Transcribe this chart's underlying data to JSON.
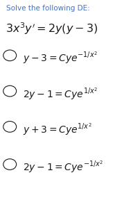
{
  "title": "Solve the following DE:",
  "equation_parts": {
    "text": "3x³y′ = 2y(y – 3)",
    "math": "$3x^3y^{\\prime} = 2y(y-3)$"
  },
  "options": [
    "$y-3 = Cye^{-1/x^2}$",
    "$2y-1 = Cye^{1/x^2}$",
    "$y+3 = Cye^{1/x^2}$",
    "$2y-1 = Cye^{-1/x^2}$"
  ],
  "title_color": "#4472C4",
  "text_color": "#1a1a1a",
  "bg_color": "#FFFFFF",
  "title_fontsize": 7.5,
  "eq_fontsize": 11.5,
  "option_fontsize": 10.0,
  "figsize": [
    1.89,
    2.85
  ],
  "dpi": 100
}
